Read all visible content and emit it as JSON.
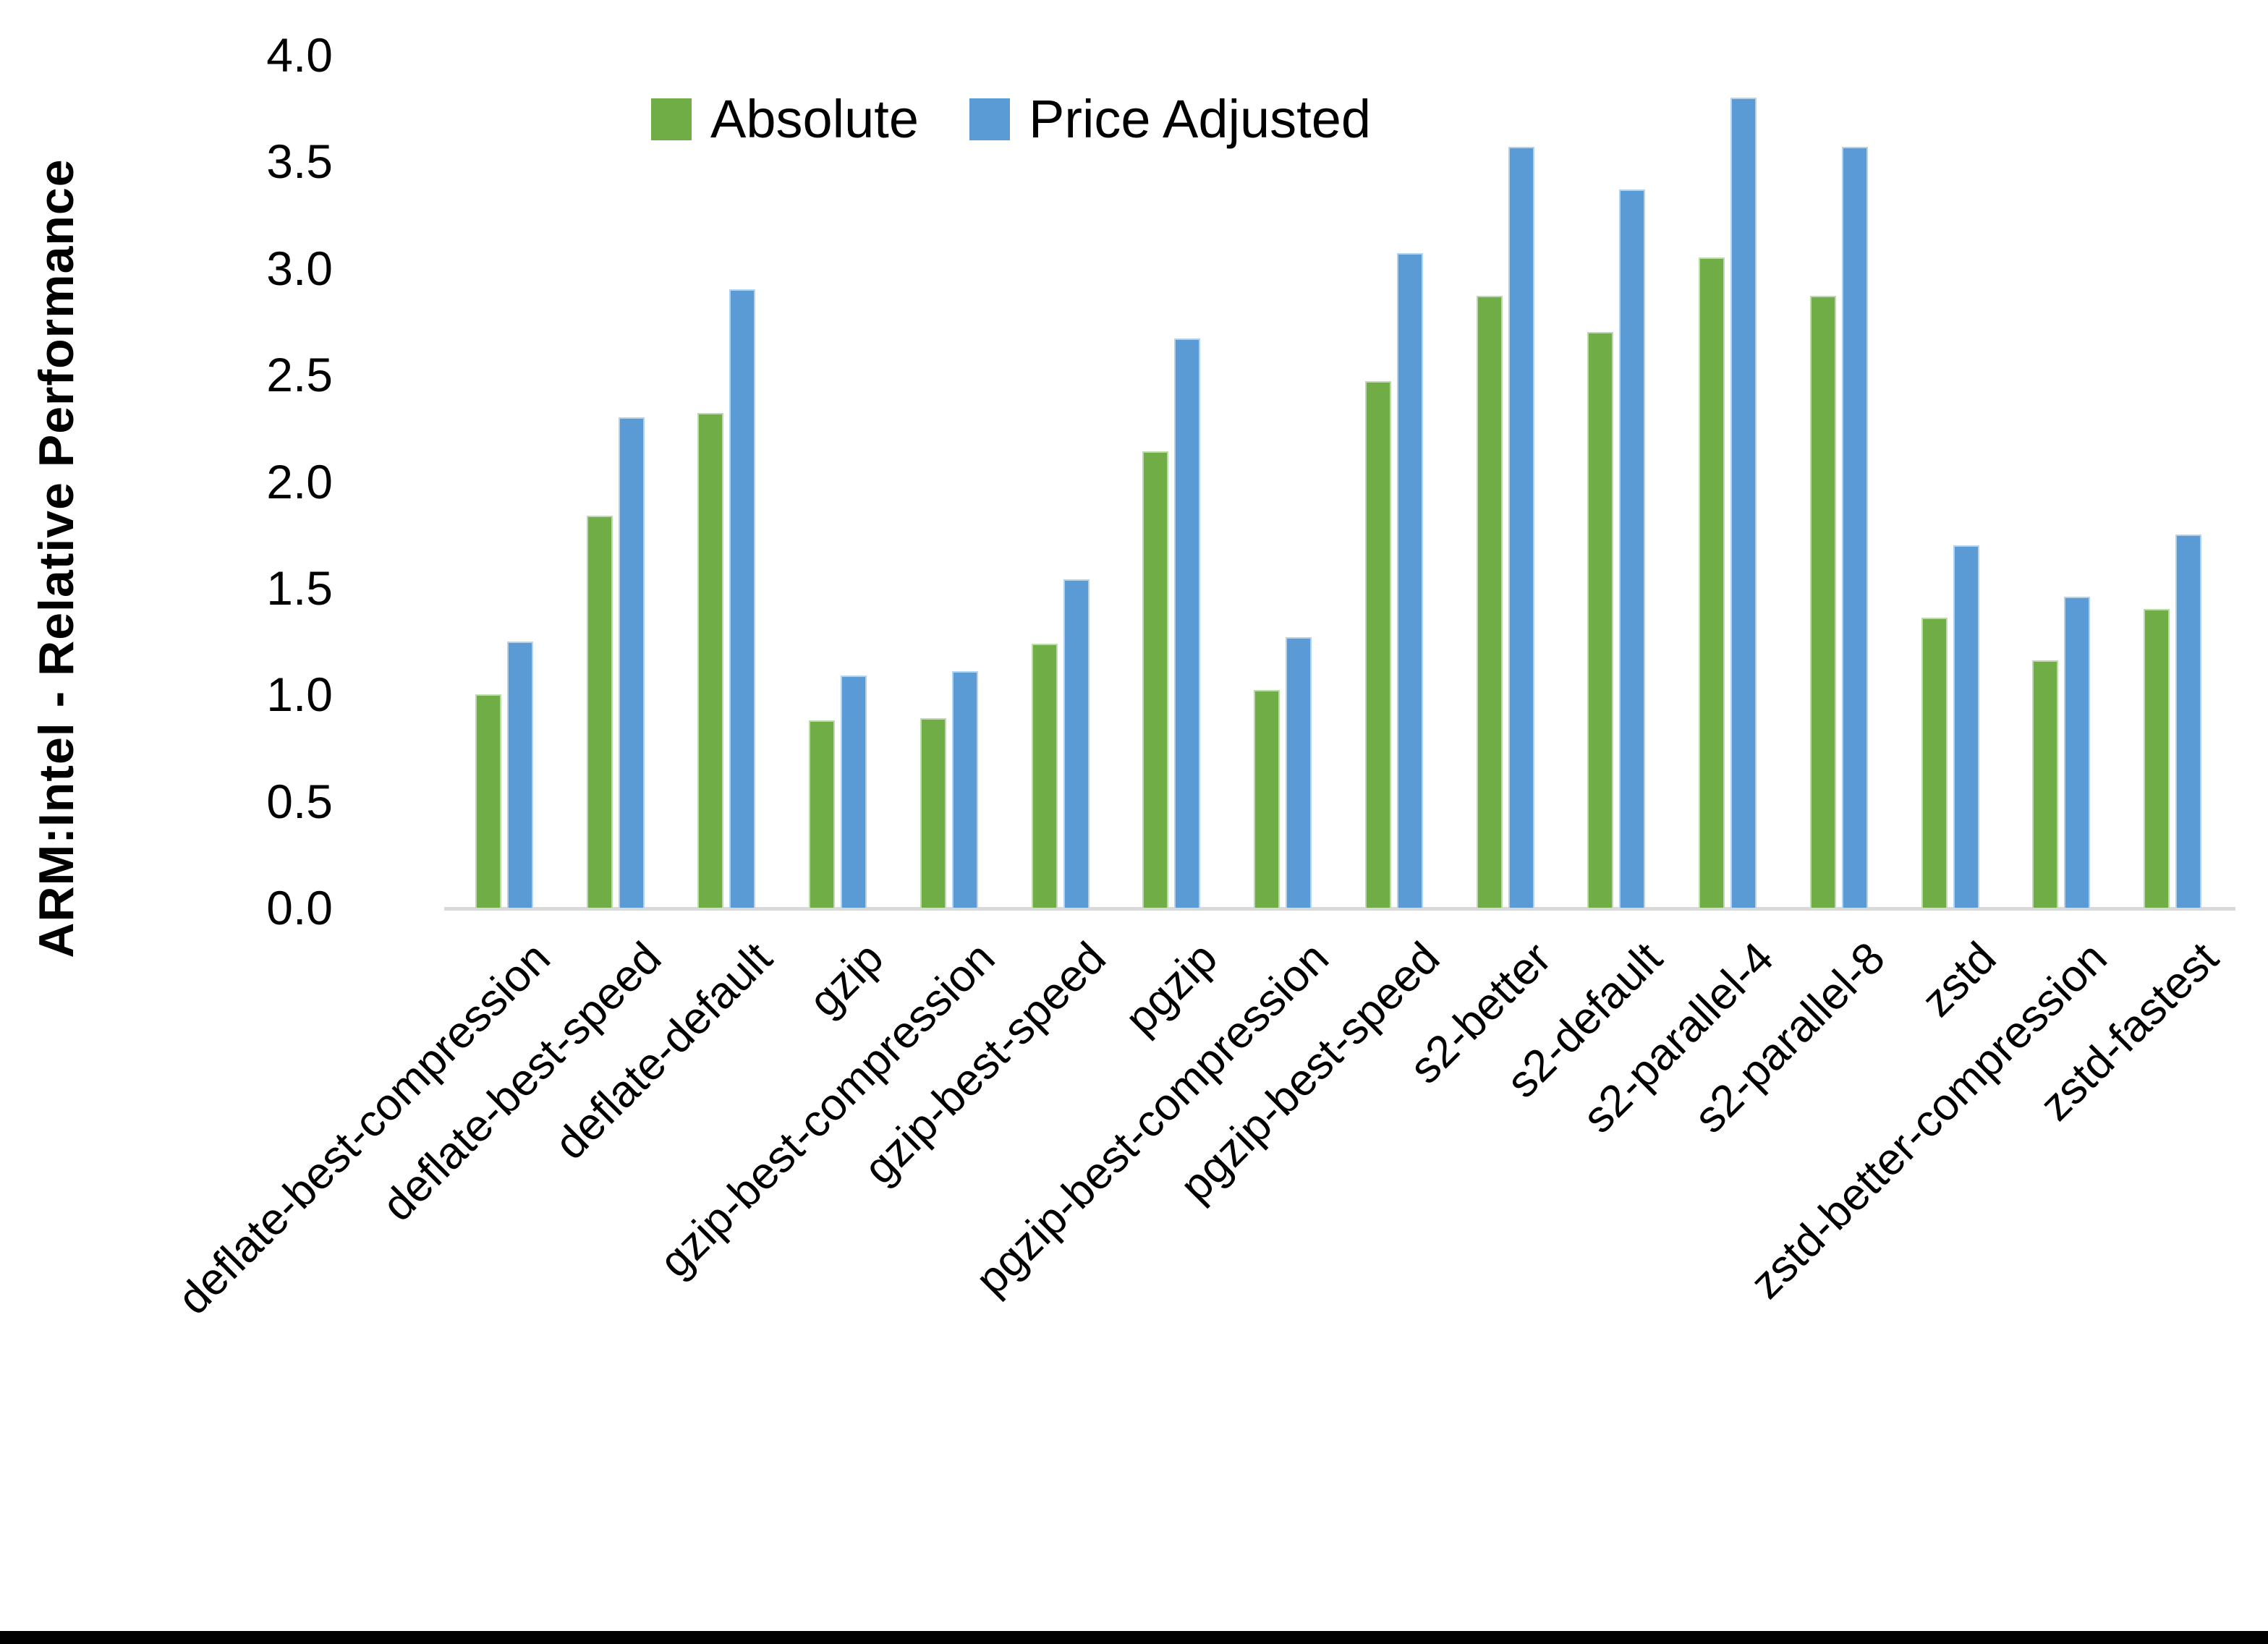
{
  "y_axis": {
    "title": "ARM:Intel - Relative Performance",
    "tick_labels": [
      "0.0",
      "0.5",
      "1.0",
      "1.5",
      "2.0",
      "2.5",
      "3.0",
      "3.5",
      "4.0"
    ],
    "min": 0,
    "max": 4
  },
  "colors": {
    "absolute": "#70AD47",
    "price_adjusted": "#5B9BD5",
    "axis_line": "#D9D9D9",
    "bottom_edge": "#000000"
  },
  "chart_data": {
    "type": "bar",
    "title": "",
    "xlabel": "",
    "ylabel": "ARM:Intel - Relative Performance",
    "ylim": [
      0,
      4
    ],
    "ytick_step": 0.5,
    "grid": false,
    "legend_position": "top-center",
    "categories": [
      "deflate-best-compression",
      "deflate-best-speed",
      "deflate-default",
      "gzip",
      "gzip-best-compression",
      "gzip-best-speed",
      "pgzip",
      "pgzip-best-compression",
      "pgzip-best-speed",
      "s2-better",
      "s2-default",
      "s2-parallel-4",
      "s2-parallel-8",
      "zstd",
      "zstd-better-compression",
      "zstd-fastest"
    ],
    "series": [
      {
        "name": "Absolute",
        "color": "#70AD47",
        "values": [
          1.0,
          1.84,
          2.32,
          0.88,
          0.89,
          1.24,
          2.14,
          1.02,
          2.47,
          2.87,
          2.7,
          3.05,
          2.87,
          1.36,
          1.16,
          1.4
        ]
      },
      {
        "name": "Price Adjusted",
        "color": "#5B9BD5",
        "values": [
          1.25,
          2.3,
          2.9,
          1.09,
          1.11,
          1.54,
          2.67,
          1.27,
          3.07,
          3.57,
          3.37,
          3.8,
          3.57,
          1.7,
          1.46,
          1.75
        ]
      }
    ]
  }
}
